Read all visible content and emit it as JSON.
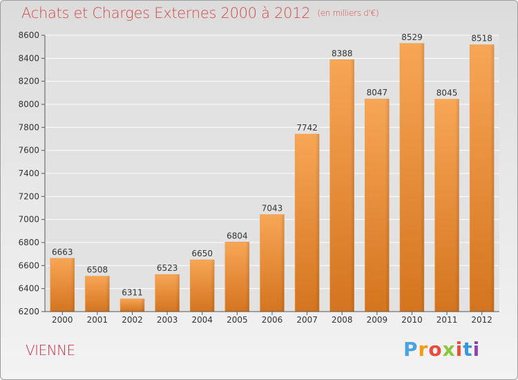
{
  "header": {
    "title": "Achats et Charges Externes 2000 à 2012",
    "subtitle": "(en milliers d'€)"
  },
  "footer": {
    "commune": "VIENNE",
    "logo_letters": [
      "P",
      "r",
      "o",
      "x",
      "i",
      "t",
      "i"
    ],
    "logo_colors": [
      "#4aa3df",
      "#f39c12",
      "#e74c3c",
      "#8cc63f",
      "#e74c3c",
      "#3498db",
      "#8e44ad"
    ]
  },
  "colors": {
    "bar_top": "#f7a656",
    "bar_bottom": "#d4741f",
    "title": "#d44a4a",
    "grid": "#ffffff"
  },
  "chart_data": {
    "type": "bar",
    "title": "Achats et Charges Externes 2000 à 2012",
    "subtitle": "(en milliers d'€)",
    "categories": [
      "2000",
      "2001",
      "2002",
      "2003",
      "2004",
      "2005",
      "2006",
      "2007",
      "2008",
      "2009",
      "2010",
      "2011",
      "2012"
    ],
    "values": [
      6663,
      6508,
      6311,
      6523,
      6650,
      6804,
      7043,
      7742,
      8388,
      8047,
      8529,
      8045,
      8518
    ],
    "ylim": [
      6200,
      8600
    ],
    "yticks": [
      6200,
      6400,
      6600,
      6800,
      7000,
      7200,
      7400,
      7600,
      7800,
      8000,
      8200,
      8400,
      8600
    ],
    "grid": true,
    "data_labels": true
  }
}
